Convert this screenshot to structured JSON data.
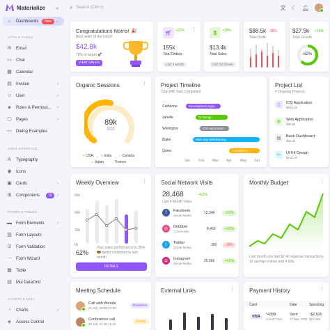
{
  "brand": {
    "name": "Materialize"
  },
  "search": {
    "placeholder": "Search (Ctrl+/)"
  },
  "sidebar": {
    "dashboards": {
      "label": "Dashboards",
      "badge": "New"
    },
    "sections": {
      "apps": "APPS & PAGES",
      "ui": "USER INTERFACE",
      "forms": "FORMS & TABLES",
      "charts": "CHARTS & MISC"
    },
    "items": [
      {
        "label": "Email"
      },
      {
        "label": "Chat"
      },
      {
        "label": "Calendar"
      },
      {
        "label": "Invoice"
      },
      {
        "label": "User"
      },
      {
        "label": "Roles & Permissi..."
      },
      {
        "label": "Pages"
      },
      {
        "label": "Dialog Examples"
      },
      {
        "label": "Typography"
      },
      {
        "label": "Icons"
      },
      {
        "label": "Cards"
      },
      {
        "label": "Components",
        "badge": "19"
      },
      {
        "label": "Form Elements"
      },
      {
        "label": "Form Layouts"
      },
      {
        "label": "Form Validation"
      },
      {
        "label": "Form Wizard"
      },
      {
        "label": "Table"
      },
      {
        "label": "Mui DataGrid"
      },
      {
        "label": "Charts"
      },
      {
        "label": "Access Control"
      }
    ]
  },
  "congrats": {
    "title": "Congratulations Norris! 🎉",
    "subtitle": "Best seller of the month",
    "value": "$42.8k",
    "target": "78% of target 🚀",
    "button": "VIEW SALES"
  },
  "stats": [
    {
      "change": "+22%",
      "value": "155k",
      "label": "Total Orders",
      "chip": "Last 4 Month",
      "color": "#9155fd"
    },
    {
      "change": "+38%",
      "value": "$13.4k",
      "label": "Total Sales",
      "chip": "Last Six Month",
      "color": "#56ca00"
    },
    {
      "value": "$88.5k",
      "change": "-18%",
      "label": "Total Profit"
    },
    {
      "value": "$27.9k",
      "change": "+16%",
      "label": "Total Growth",
      "progress": "62%"
    }
  ],
  "sessions": {
    "title": "Organic Sessions",
    "value": "89k",
    "year": "2022",
    "legend": [
      "USA",
      "India",
      "Canada",
      "Japan",
      "France"
    ],
    "progress": 0.75
  },
  "timeline": {
    "title": "Project Timeline",
    "subtitle": "Total 840 Task Completed",
    "people": [
      "Catherine",
      "Janelle",
      "Wellington",
      "Blake",
      "Quinn"
    ],
    "tasks": [
      "Development Apps",
      "UI Design",
      "IOS Application",
      "Web App Wireframing",
      "Prototyping"
    ],
    "months": [
      "Jan",
      "Feb",
      "Mar",
      "Apr",
      "May",
      "Jun"
    ]
  },
  "projects": {
    "title": "Project List",
    "subtitle": "4 Ongoing Projects",
    "items": [
      {
        "name": "IOS Application",
        "amount": "$840.5k"
      },
      {
        "name": "Web Application",
        "amount": "$99.8k"
      },
      {
        "name": "Bank Dashboard",
        "amount": "$58.2k"
      },
      {
        "name": "UI Kit Design",
        "amount": "$120.0k"
      }
    ]
  },
  "weekly": {
    "title": "Weekly Overview",
    "percent": "62%",
    "text": "Your sales performance is 35% 😎 better compared to last month",
    "button": "DETAILS",
    "y_ticks": [
      "90k",
      "60k",
      "30k",
      "0k"
    ]
  },
  "social": {
    "title": "Social Network Visits",
    "value": "28,468",
    "change": "+62%",
    "subtitle": "Last 4 Month Visits",
    "items": [
      {
        "name": "Facebook",
        "sub": "Social Media",
        "count": "12,348",
        "change": "+12%"
      },
      {
        "name": "Dribbble",
        "sub": "Community",
        "count": "8,450",
        "change": "+32%"
      },
      {
        "name": "Twitter",
        "sub": "Social Media",
        "count": "350",
        "change": "-18%"
      },
      {
        "name": "Instagram",
        "sub": "Social Media",
        "count": "25,566",
        "change": "+42%"
      }
    ]
  },
  "budget": {
    "title": "Monthly Budget",
    "text": "Last month you had $2.42 expense transactions, 12 savings entries and 4 bills."
  },
  "meeting": {
    "title": "Meeting Schedule",
    "items": [
      {
        "name": "Call with Woods",
        "time": "21 Jul | 08:20-10:30",
        "tag": "Business"
      },
      {
        "name": "Conference call",
        "time": "28 Jul | 04:00-11:00",
        "tag": "Dinner"
      }
    ]
  },
  "links": {
    "title": "External Links"
  },
  "payment": {
    "title": "Payment History",
    "headers": [
      "Card",
      "Date",
      "Spending"
    ],
    "rows": [
      {
        "card": "VISA",
        "number": "*4399",
        "type": "Credit Card",
        "date": "Sent",
        "date2": "17 Mar 2022",
        "amount": "-$2,820",
        "balance": "$10,450"
      }
    ]
  }
}
